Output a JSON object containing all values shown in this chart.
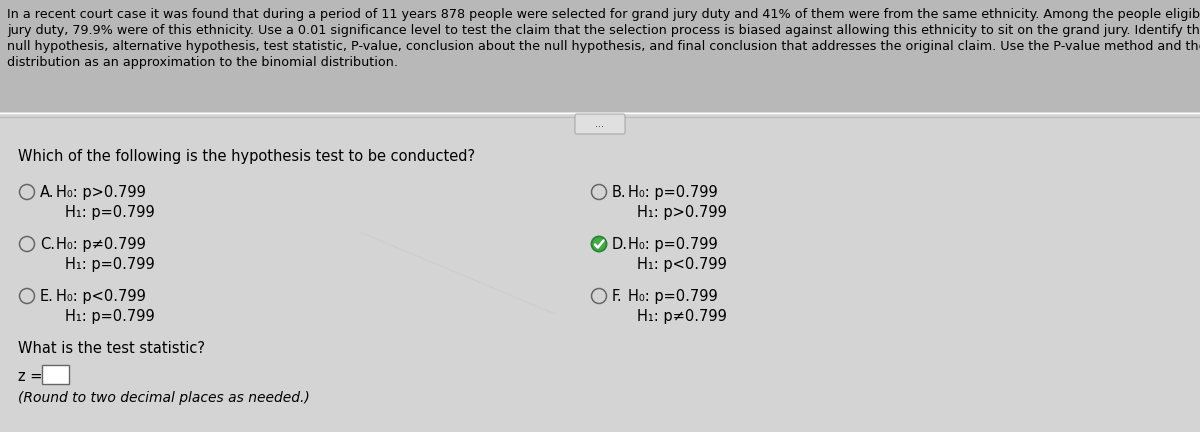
{
  "header_bg": "#b8b8b8",
  "body_bg": "#d4d4d4",
  "header_line1": "In a recent court case it was found that during a period of 11 years 878 people were selected for grand jury duty and 41% of them were from the same ethnicity. Among the people eligible for grand",
  "header_line2": "jury duty, 79.9% were of this ethnicity. Use a 0.01 significance level to test the claim that the selection process is biased against allowing this ethnicity to sit on the grand jury. Identify the",
  "header_line3": "null hypothesis, alternative hypothesis, test statistic, P-value, conclusion about the null hypothesis, and final conclusion that addresses the original claim. Use the P-value method and the normal",
  "header_line4": "distribution as an approximation to the binomial distribution.",
  "question1": "Which of the following is the hypothesis test to be conducted?",
  "options": [
    {
      "label": "A.",
      "h0": "H₀: p>0.799",
      "h1": "H₁: p=0.799",
      "selected": false,
      "col": 0
    },
    {
      "label": "B.",
      "h0": "H₀: p=0.799",
      "h1": "H₁: p>0.799",
      "selected": false,
      "col": 1
    },
    {
      "label": "C.",
      "h0": "H₀: p≠0.799",
      "h1": "H₁: p=0.799",
      "selected": false,
      "col": 0
    },
    {
      "label": "D.",
      "h0": "H₀: p=0.799",
      "h1": "H₁: p<0.799",
      "selected": true,
      "col": 1
    },
    {
      "label": "E.",
      "h0": "H₀: p<0.799",
      "h1": "H₁: p=0.799",
      "selected": false,
      "col": 0
    },
    {
      "label": "F.",
      "h0": "H₀: p=0.799",
      "h1": "H₁: p≠0.799",
      "selected": false,
      "col": 1
    }
  ],
  "question2": "What is the test statistic?",
  "z_label": "z =",
  "round_note": "(Round to two decimal places as needed.)",
  "divider_dots": "...",
  "header_fontsize": 9.2,
  "body_fontsize": 10.5,
  "option_fontsize": 10.5
}
